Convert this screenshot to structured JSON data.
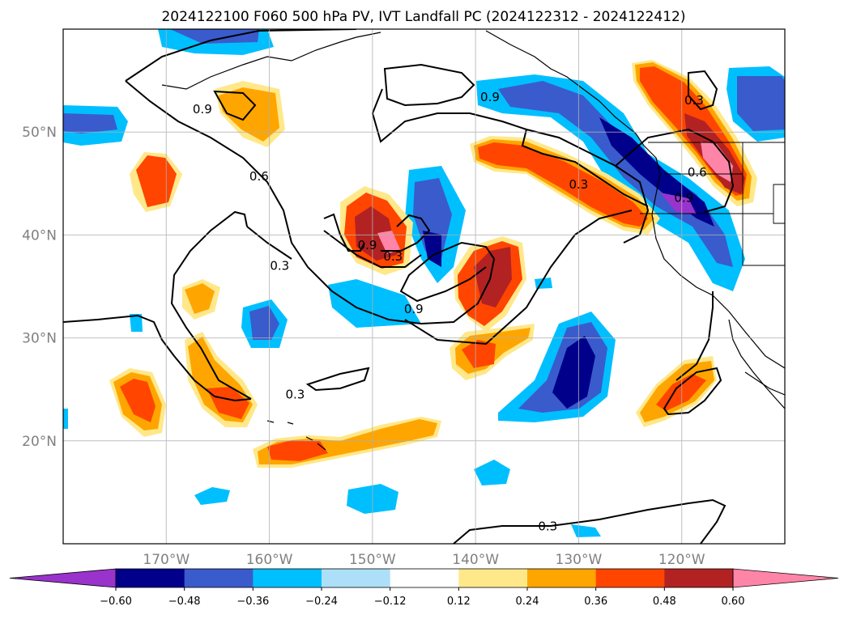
{
  "title": "2024122100 F060 500 hPa PV, IVT Landfall PC (2024122312 - 2024122412)",
  "map": {
    "lon_range": [
      -180,
      -110
    ],
    "lat_range": [
      10,
      60
    ],
    "lon_ticks": [
      {
        "value": -170,
        "label": "170°W"
      },
      {
        "value": -160,
        "label": "160°W"
      },
      {
        "value": -150,
        "label": "150°W"
      },
      {
        "value": -140,
        "label": "140°W"
      },
      {
        "value": -130,
        "label": "130°W"
      },
      {
        "value": -120,
        "label": "120°W"
      }
    ],
    "lat_ticks": [
      {
        "value": 20,
        "label": "20°N"
      },
      {
        "value": 30,
        "label": "30°N"
      },
      {
        "value": 40,
        "label": "40°N"
      },
      {
        "value": 50,
        "label": "50°N"
      }
    ],
    "grid": true
  },
  "contour_labels": [
    {
      "text": "0.9",
      "lon": -166.5,
      "lat": 52.2
    },
    {
      "text": "0.6",
      "lon": -161.0,
      "lat": 45.7
    },
    {
      "text": "0.3",
      "lon": -159.0,
      "lat": 37.0
    },
    {
      "text": "0.9",
      "lon": -150.5,
      "lat": 39.0
    },
    {
      "text": "0.3",
      "lon": -148.0,
      "lat": 37.9
    },
    {
      "text": "0.9",
      "lon": -146.0,
      "lat": 32.8
    },
    {
      "text": "0.9",
      "lon": -138.6,
      "lat": 53.4
    },
    {
      "text": "0.3",
      "lon": -130.0,
      "lat": 44.9
    },
    {
      "text": "0.3",
      "lon": -157.5,
      "lat": 24.5
    },
    {
      "text": "0.3",
      "lon": -118.8,
      "lat": 53.1
    },
    {
      "text": "0.6",
      "lon": -118.5,
      "lat": 46.1
    },
    {
      "text": "0.9",
      "lon": -119.8,
      "lat": 43.6
    },
    {
      "text": "0.3",
      "lon": -133.0,
      "lat": 11.7
    }
  ],
  "colorbar": {
    "levels": [
      -0.6,
      -0.48,
      -0.36,
      -0.24,
      -0.12,
      0.12,
      0.24,
      0.36,
      0.48,
      0.6
    ],
    "tick_labels": [
      "−0.60",
      "−0.48",
      "−0.36",
      "−0.24",
      "−0.12",
      "0.12",
      "0.24",
      "0.36",
      "0.48",
      "0.60"
    ],
    "colors": [
      "#9933CC",
      "#00008B",
      "#3A5BCC",
      "#00BFFF",
      "#ADDFF8",
      "#FFFFFF",
      "#FFE88A",
      "#FFA500",
      "#FF4500",
      "#B22222",
      "#FF85A8"
    ],
    "extend": "both"
  }
}
